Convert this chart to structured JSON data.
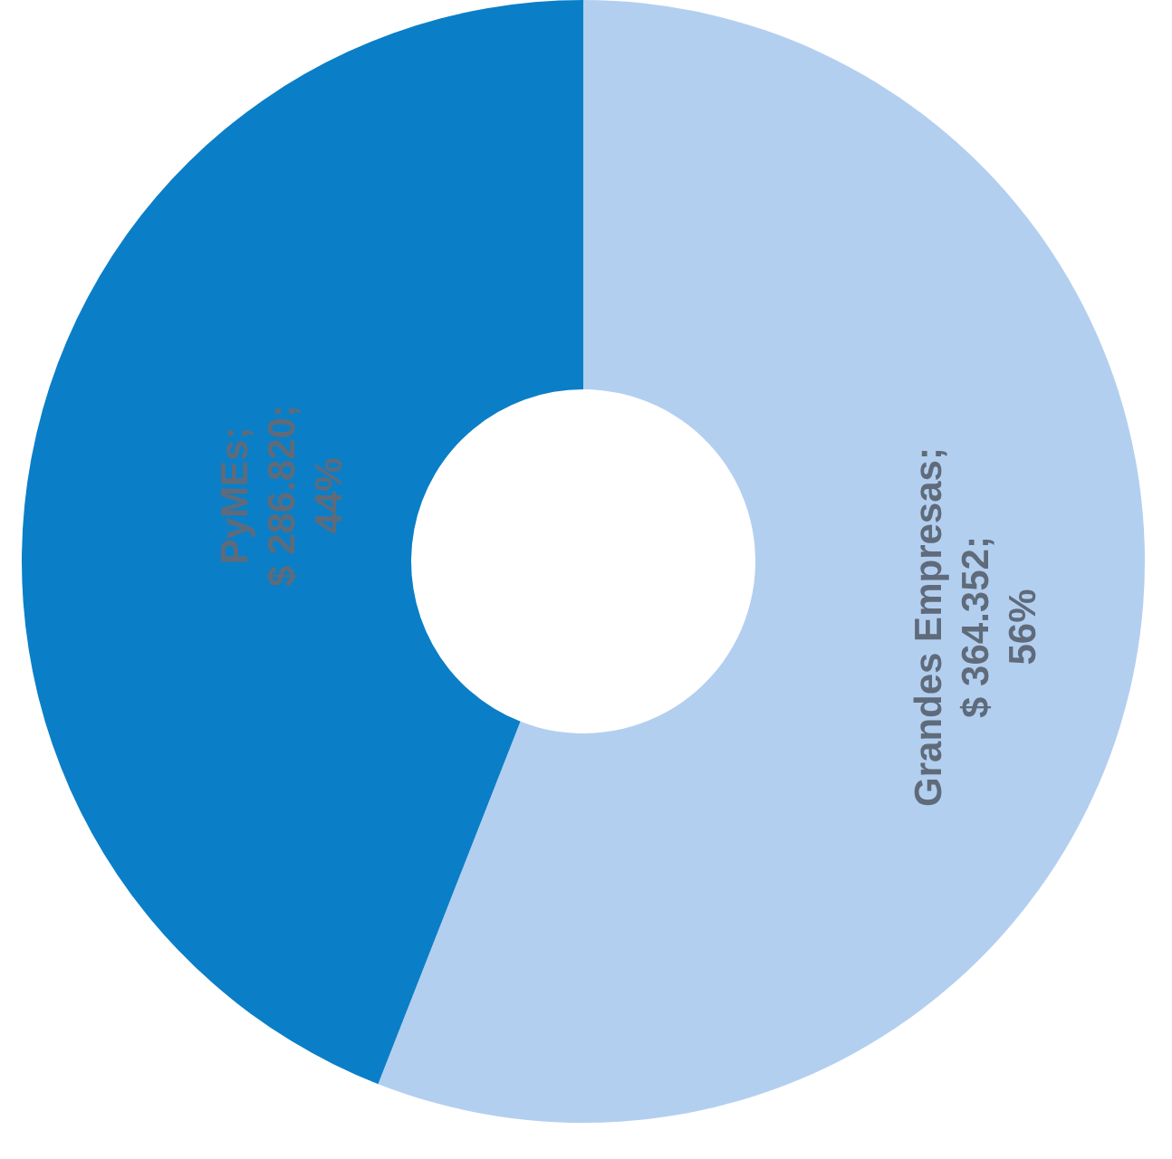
{
  "chart_data": {
    "type": "donut",
    "categories": [
      "Grandes Empresas",
      "PyMEs"
    ],
    "values": [
      364352,
      286820
    ],
    "colors": [
      "#b3cff0",
      "#0a7fc7"
    ],
    "value_labels": [
      "; $ 364.352; 56%",
      "; $ 286.820; 44%"
    ]
  }
}
